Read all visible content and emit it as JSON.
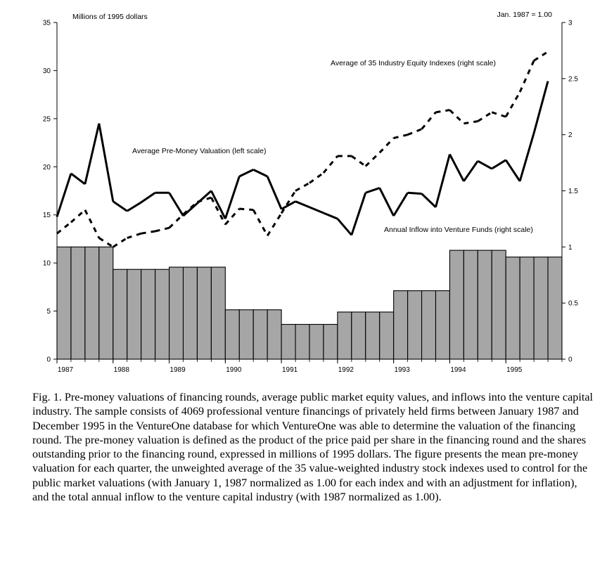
{
  "chart_data": {
    "type": "bar+line",
    "left_axis": {
      "label": "Millions of 1995 dollars",
      "ticks": [
        "0",
        "5",
        "10",
        "15",
        "20",
        "25",
        "30",
        "35"
      ],
      "ylim": [
        0,
        35
      ]
    },
    "right_axis": {
      "label": "Jan. 1987 = 1.00",
      "ticks": [
        "0",
        "0.5",
        "1",
        "1.5",
        "2",
        "2.5",
        "3"
      ],
      "ylim": [
        0,
        3
      ]
    },
    "x_ticks": [
      "1987",
      "1988",
      "1989",
      "1990",
      "1991",
      "1992",
      "1993",
      "1994",
      "1995"
    ],
    "annotations": {
      "equity": "Average of 35 Industry Equity Indexes (right scale)",
      "valuation": "Average Pre-Money Valuation (left scale)",
      "inflow": "Annual Inflow into Venture Funds (right scale)"
    },
    "series": [
      {
        "key": "inflow",
        "kind": "bar",
        "axis": "right",
        "color": "#a6a6a6",
        "values": [
          1.0,
          0.8,
          0.82,
          0.44,
          0.31,
          0.42,
          0.61,
          0.97,
          0.91
        ]
      },
      {
        "key": "valuation",
        "kind": "solid-line",
        "axis": "left",
        "x": [
          1987.0,
          1987.25,
          1987.5,
          1987.75,
          1988.0,
          1988.25,
          1988.5,
          1988.75,
          1989.0,
          1989.25,
          1989.5,
          1989.75,
          1990.0,
          1990.25,
          1990.5,
          1990.75,
          1991.0,
          1991.25,
          1991.5,
          1991.75,
          1992.0,
          1992.25,
          1992.5,
          1992.75,
          1993.0,
          1993.25,
          1993.5,
          1993.75,
          1994.0,
          1994.25,
          1994.5,
          1994.75,
          1995.0,
          1995.25,
          1995.5,
          1995.75
        ],
        "values": [
          14.8,
          19.3,
          18.2,
          24.5,
          16.4,
          15.4,
          16.3,
          17.3,
          17.3,
          14.9,
          16.2,
          17.5,
          14.6,
          19.0,
          19.7,
          19.0,
          15.6,
          16.4,
          15.8,
          15.2,
          14.6,
          12.9,
          17.3,
          17.8,
          14.9,
          17.3,
          17.2,
          15.8,
          21.3,
          18.5,
          20.6,
          19.8,
          20.7,
          18.5,
          23.5,
          28.9
        ]
      },
      {
        "key": "equity",
        "kind": "dashed-line",
        "axis": "right",
        "x": [
          1987.0,
          1987.25,
          1987.5,
          1987.75,
          1988.0,
          1988.25,
          1988.5,
          1988.75,
          1989.0,
          1989.25,
          1989.5,
          1989.75,
          1990.0,
          1990.25,
          1990.5,
          1990.75,
          1991.0,
          1991.25,
          1991.5,
          1991.75,
          1992.0,
          1992.25,
          1992.5,
          1992.75,
          1993.0,
          1993.25,
          1993.5,
          1993.75,
          1994.0,
          1994.25,
          1994.5,
          1994.75,
          1995.0,
          1995.25,
          1995.5,
          1995.75
        ],
        "values": [
          1.12,
          1.22,
          1.33,
          1.08,
          1.0,
          1.08,
          1.12,
          1.14,
          1.17,
          1.29,
          1.4,
          1.44,
          1.2,
          1.34,
          1.33,
          1.1,
          1.3,
          1.5,
          1.57,
          1.66,
          1.81,
          1.81,
          1.72,
          1.84,
          1.97,
          2.0,
          2.05,
          2.2,
          2.22,
          2.1,
          2.12,
          2.2,
          2.16,
          2.38,
          2.66,
          2.74
        ]
      }
    ]
  },
  "caption": "Fig. 1.  Pre-money valuations of financing rounds, average public market equity values, and inflows into the venture capital industry. The sample consists of 4069 professional venture financings of privately held firms between January 1987 and December 1995 in the VentureOne database for which VentureOne was able to determine the valuation of the financing round. The pre-money valuation is defined as the product of the price paid per share in the financing round and the shares outstanding prior to the financing round, expressed in millions of 1995 dollars. The figure presents the mean pre-money valuation for each quarter, the unweighted average of the 35 value-weighted industry stock indexes used to control for the public market valuations (with January 1, 1987 normalized as 1.00 for each index and with an adjustment for inflation), and the total annual inflow to the venture capital industry (with 1987 normalized as 1.00)."
}
